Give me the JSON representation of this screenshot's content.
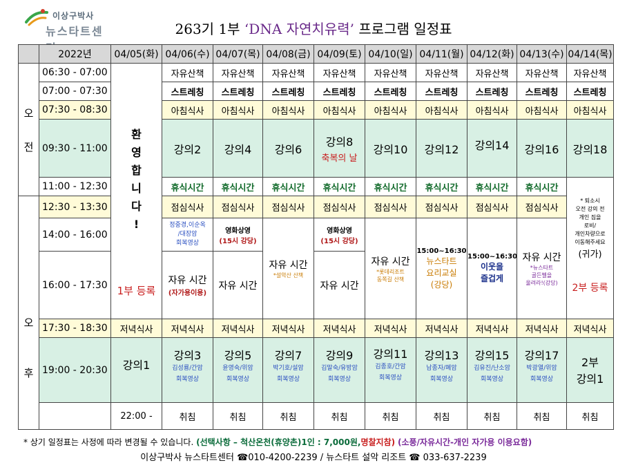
{
  "logo": {
    "line1": "이상구박사",
    "line2": "뉴스타트센터"
  },
  "title": {
    "prefix": "263기 1부 ",
    "highlight": "‘DNA 자연치유력’",
    "suffix": " 프로그램 일정표"
  },
  "header": {
    "year": "2022년",
    "dates": [
      "04/05(화)",
      "04/06(수)",
      "04/07(목)",
      "04/08(금)",
      "04/09(토)",
      "04/10(일)",
      "04/11(월)",
      "04/12(화)",
      "04/13(수)",
      "04/14(목)"
    ]
  },
  "periods": {
    "am_1": "오",
    "am_2": "전",
    "pm_1": "오",
    "pm_2": "후"
  },
  "times": [
    "06:30 - 07:00",
    "07:00 - 07:30",
    "07:30 - 08:30",
    "09:30 - 11:00",
    "11:00 - 12:30",
    "12:30 - 13:30",
    "14:00 - 16:00",
    "16:00 - 17:30",
    "17:30 - 18:30",
    "19:00 - 20:30",
    "22:00 -"
  ],
  "welcome": {
    "chars": [
      "환",
      "영",
      "합",
      "니",
      "다",
      "!"
    ]
  },
  "registration_1": "1부 등록",
  "walk": "자유산책",
  "stretch": "스트레칭",
  "breakfast": "아침식사",
  "rest": "휴식시간",
  "lunch": "점심식사",
  "dinner": "저녁식사",
  "sleep": "취침",
  "morning_lectures": [
    "강의2",
    "강의4",
    "강의6",
    "강의8",
    "강의10",
    "강의12",
    "강의14",
    "강의16",
    "강의18"
  ],
  "blessing_day": "축복의 날",
  "last_day": {
    "note_1": "* 퇴소시",
    "note_2": "오전 강의 전",
    "note_3": "개인 짐을",
    "note_4": "로비/",
    "note_5": "개인차량으로",
    "note_6": "이동해주세요",
    "note_7": "(귀가)",
    "registration_2": "2부 등록",
    "evening_1": "2부",
    "evening_2": "강의1"
  },
  "afternoon": {
    "d0406_top_1": "정중경,이순옥",
    "d0406_top_2": "/대장암",
    "d0406_top_3": "회복영상",
    "d0406_free": "자유 시간",
    "d0406_free_note": "(자가용이용)",
    "movie": "영화상영",
    "movie_time": "(15시 강당)",
    "d0407_free": "자유 시간",
    "d0408_free": "자유 시간",
    "d0408_note": "*설악산 산책",
    "d0409_free": "자유 시간",
    "d0410_free": "자유 시간",
    "d0410_note_1": "*롯데리조트",
    "d0410_note_2": "동쪽길 산책",
    "d0411_time": "15:00~16:30",
    "d0411_1": "뉴스타트",
    "d0411_2": "요리교실",
    "d0411_3": "(강당)",
    "d0412_time": "15:00~16:30",
    "d0412_1": "이웃을",
    "d0412_2": "즐겁게",
    "d0413_free": "자유 시간",
    "d0413_note_1": "*뉴스타트",
    "d0413_note_2": "골든벨을",
    "d0413_note_3": "울려라!(강당)"
  },
  "evening": [
    {
      "lecture": "강의1",
      "sub1": "",
      "sub2": ""
    },
    {
      "lecture": "강의3",
      "sub1": "김성룡/간암",
      "sub2": "회복영상"
    },
    {
      "lecture": "강의5",
      "sub1": "윤영숙/위암",
      "sub2": "회복영상"
    },
    {
      "lecture": "강의7",
      "sub1": "박기호/설암",
      "sub2": "회복영상"
    },
    {
      "lecture": "강의9",
      "sub1": "김말숙/유방암",
      "sub2": "회복영상"
    },
    {
      "lecture": "강의11",
      "sub1": "김종호/간암",
      "sub2": "회복영상"
    },
    {
      "lecture": "강의13",
      "sub1": "남종자/폐암",
      "sub2": "회복영상"
    },
    {
      "lecture": "강의15",
      "sub1": "김유진/난소암",
      "sub2": "회복영상"
    },
    {
      "lecture": "강의17",
      "sub1": "박광열/위암",
      "sub2": "회복영상"
    }
  ],
  "footnote": {
    "n1": "* 상기 일정표는 사정에 따라 변경될 수 있습니다.",
    "n2": "(선택사항 – 척산온천(휴양촌)1인 : 7,000원,",
    "n3": "명찰지참)",
    "n4": "(소풍/자유시간-개인 자가용 이용요함)"
  },
  "footer": "이상구박사 뉴스타트센터 ☎010-4200-2239 /  뉴스타트 설악 리조트 ☎ 033-637-2239"
}
